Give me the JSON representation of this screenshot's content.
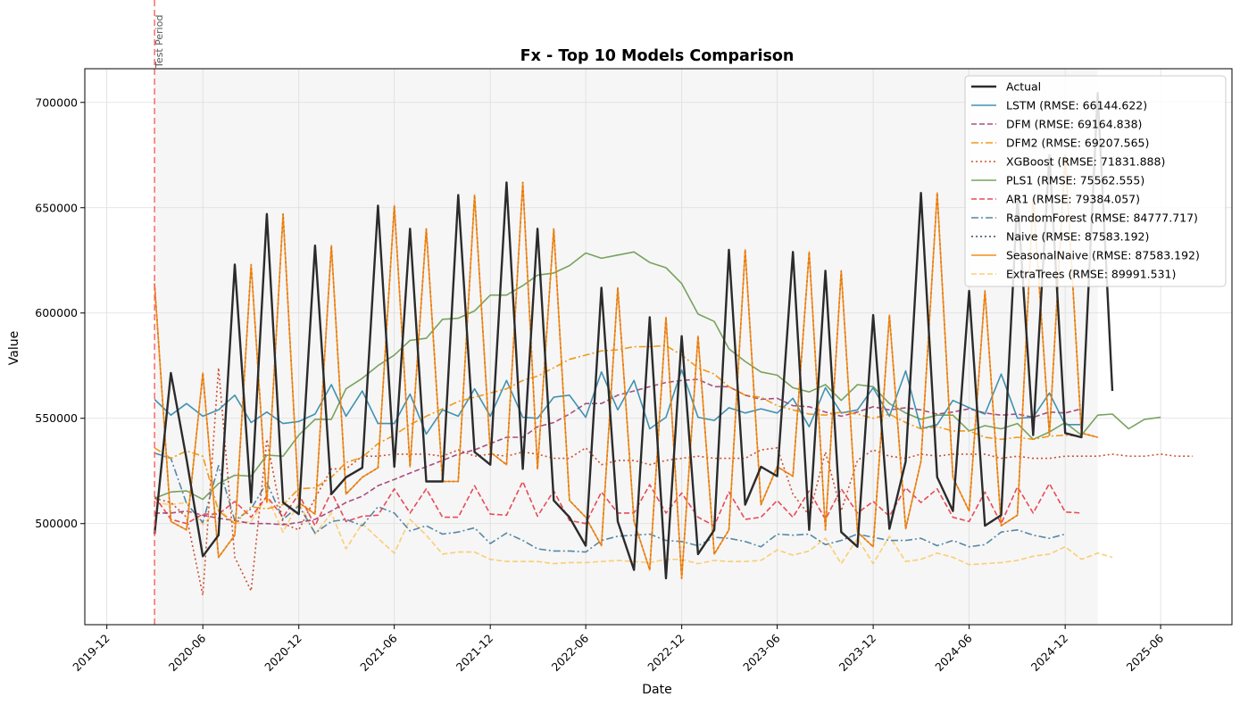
{
  "chart_data": {
    "type": "line",
    "title": "Fx - Top 10 Models Comparison",
    "xlabel": "Date",
    "ylabel": "Value",
    "xlim": [
      "2019-10-20",
      "2025-10-15"
    ],
    "ylim": [
      452000,
      716000
    ],
    "x_ticks": [
      "2019-12",
      "2020-06",
      "2020-12",
      "2021-06",
      "2021-12",
      "2022-06",
      "2022-12",
      "2023-06",
      "2023-12",
      "2024-06",
      "2024-12",
      "2025-06"
    ],
    "y_ticks": [
      500000,
      550000,
      600000,
      650000,
      700000
    ],
    "grid": true,
    "legend_position": "top-right",
    "annotation": {
      "label": "Test Period",
      "x": "2020-03-01",
      "color": "#ff5a5a"
    },
    "test_region": {
      "start": "2020-03-01",
      "end": "2025-02-01"
    },
    "colors": {
      "Actual": "#2b2b2b",
      "LSTM": "#2e86ab",
      "DFM": "#a23b72",
      "DFM2": "#f18f01",
      "XGBoost": "#c73e1d",
      "PLS1": "#6a994e",
      "AR1": "#e63946",
      "RandomForest": "#457b9d",
      "Naive": "#1d3557",
      "SeasonalNaive": "#f77f00",
      "ExtraTrees": "#fcbf49"
    },
    "series": [
      {
        "name": "Actual",
        "legend": "Actual",
        "start": "2020-03-01",
        "values": [
          495000,
          571500,
          530500,
          484500,
          494500,
          623000,
          510000,
          647000,
          510000,
          504500,
          632000,
          514000,
          522000,
          526500,
          651000,
          527000,
          640000,
          520000,
          520000,
          656000,
          534000,
          528000,
          662000,
          526000,
          640000,
          511000,
          503000,
          489500,
          612000,
          501000,
          478000,
          598000,
          474000,
          589000,
          485500,
          497000,
          630000,
          509000,
          527000,
          522500,
          629000,
          497000,
          620000,
          496000,
          489000,
          599000,
          497500,
          529500,
          657000,
          522000,
          506000,
          610500,
          499000,
          504000,
          655000,
          542000,
          675000,
          543000,
          541000,
          704500,
          563000
        ]
      },
      {
        "name": "LSTM",
        "legend": "LSTM (RMSE: 66144.622)",
        "start": "2020-03-01",
        "values": [
          559000,
          551500,
          557000,
          551000,
          554000,
          561000,
          548000,
          553000,
          547500,
          548500,
          552000,
          566000,
          551000,
          563000,
          547500,
          547500,
          561500,
          542500,
          554000,
          551000,
          564000,
          551000,
          568000,
          550500,
          550000,
          560000,
          561000,
          550500,
          572000,
          554000,
          568000,
          545000,
          550500,
          573000,
          550500,
          549000,
          555000,
          552500,
          554500,
          552500,
          559500,
          546000,
          564500,
          552500,
          554000,
          564500,
          551000,
          572500,
          545000,
          547000,
          558500,
          555000,
          552000,
          571000,
          550000,
          550500,
          562000,
          547000,
          547000
        ]
      },
      {
        "name": "DFM",
        "legend": "DFM (RMSE: 69164.838)",
        "start": "2020-03-01",
        "values": [
          505000,
          505000,
          506000,
          504000,
          502500,
          501500,
          500000,
          500000,
          499500,
          500500,
          502000,
          506000,
          510000,
          513000,
          518000,
          521000,
          524000,
          527000,
          530000,
          533000,
          535000,
          538000,
          541000,
          541000,
          546000,
          548000,
          552000,
          557000,
          557000,
          561000,
          563000,
          565000,
          567000,
          568000,
          568500,
          565000,
          565000,
          561000,
          559000,
          559500,
          556000,
          555500,
          553000,
          551000,
          553000,
          555500,
          554000,
          555000,
          554000,
          552000,
          553000,
          554500,
          552500,
          551500,
          552000,
          550500,
          553000,
          552500,
          554500
        ]
      },
      {
        "name": "DFM2",
        "legend": "DFM2 (RMSE: 69207.565)",
        "start": "2020-03-01",
        "values": [
          536000,
          531000,
          534500,
          532000,
          506000,
          500000,
          508000,
          507000,
          509000,
          516500,
          517000,
          522000,
          529000,
          531500,
          538000,
          542000,
          547000,
          551000,
          554500,
          558000,
          560000,
          562000,
          564000,
          568000,
          570000,
          574000,
          578000,
          580000,
          582000,
          582500,
          584000,
          584000,
          584500,
          580000,
          574000,
          571000,
          565000,
          561000,
          560000,
          556000,
          554000,
          552000,
          551500,
          553000,
          552000,
          550000,
          552000,
          548000,
          545000,
          546000,
          544000,
          544000,
          541000,
          540000,
          541000,
          540000,
          541500,
          542000,
          541500
        ]
      },
      {
        "name": "XGBoost",
        "legend": "XGBoost (RMSE: 71831.888)",
        "start": "2020-03-01",
        "values": [
          512000,
          510000,
          503000,
          466000,
          574000,
          484000,
          468000,
          540000,
          500000,
          497000,
          512000,
          526000,
          526000,
          532000,
          532000,
          533000,
          533000,
          533000,
          532000,
          535000,
          532000,
          533000,
          532000,
          534000,
          533000,
          531000,
          531000,
          536000,
          528000,
          530000,
          530000,
          528000,
          530000,
          531000,
          532000,
          531000,
          531000,
          531000,
          535000,
          536000,
          514000,
          504000,
          534000,
          506000,
          530000,
          535000,
          532000,
          531000,
          533000,
          532000,
          533000,
          533000,
          533000,
          531000,
          532000,
          531000,
          531000,
          532000,
          532000,
          532000,
          533000,
          532000,
          532000,
          533000,
          532000,
          532000
        ]
      },
      {
        "name": "PLS1",
        "legend": "PLS1 (RMSE: 75562.555)",
        "start": "2020-03-01",
        "values": [
          512000,
          515000,
          515500,
          511500,
          519000,
          523000,
          522500,
          532500,
          532000,
          542000,
          549500,
          549500,
          564000,
          569000,
          575000,
          580000,
          587000,
          588000,
          597000,
          597500,
          601000,
          608500,
          608500,
          613000,
          618000,
          619000,
          622500,
          628500,
          626000,
          627500,
          629000,
          624000,
          621500,
          614000,
          599500,
          596000,
          583000,
          577000,
          572000,
          570500,
          564500,
          562500,
          566000,
          558500,
          566000,
          565000,
          557000,
          552500,
          549500,
          551500,
          551500,
          544000,
          546500,
          545000,
          547500,
          540000,
          543500,
          548000,
          542000,
          551500,
          552000,
          545000,
          549500,
          550500
        ]
      },
      {
        "name": "AR1",
        "legend": "AR1 (RMSE: 79384.057)",
        "start": "2020-03-01",
        "values": [
          513000,
          502000,
          500000,
          504500,
          504500,
          510500,
          503000,
          513000,
          503000,
          514000,
          499000,
          515000,
          501000,
          503500,
          504000,
          516500,
          505000,
          516500,
          503000,
          503000,
          518000,
          504500,
          504000,
          520000,
          503500,
          515500,
          501500,
          500000,
          515000,
          505000,
          505000,
          518500,
          505000,
          514500,
          503000,
          499000,
          515000,
          502000,
          503000,
          511000,
          503000,
          515500,
          502000,
          516500,
          505000,
          510500,
          503500,
          517000,
          510000,
          516500,
          503000,
          501000,
          515000,
          500000,
          517500,
          505000,
          519000,
          505500,
          505000
        ]
      },
      {
        "name": "RandomForest",
        "legend": "RandomForest (RMSE: 84777.717)",
        "start": "2020-03-01",
        "values": [
          533500,
          531000,
          509500,
          500500,
          527500,
          501500,
          507000,
          519500,
          502000,
          508500,
          495500,
          501000,
          502000,
          499000,
          508000,
          505000,
          496500,
          499000,
          495000,
          496000,
          498000,
          490500,
          495500,
          492000,
          488000,
          487000,
          487000,
          486500,
          492000,
          494000,
          494500,
          495000,
          492000,
          491500,
          489500,
          493500,
          493000,
          491500,
          489000,
          495000,
          494500,
          495000,
          490000,
          492000,
          495000,
          493500,
          492000,
          492000,
          493000,
          489500,
          492000,
          489000,
          490000,
          496000,
          497000,
          494500,
          493000,
          495000
        ]
      },
      {
        "name": "Naive",
        "legend": "Naive (RMSE: 87583.192)",
        "start": "2020-03-01",
        "values": [
          614000,
          501000,
          497000,
          571500,
          484000,
          494500,
          623000,
          510000,
          647000,
          510000,
          504500,
          632000,
          514000,
          522000,
          526500,
          651000,
          527000,
          640000,
          520000,
          520000,
          656000,
          534000,
          528000,
          662000,
          526000,
          640000,
          511000,
          503000,
          489500,
          612000,
          501000,
          478000,
          598000,
          474000,
          589000,
          485500,
          497000,
          630000,
          509000,
          527000,
          522500,
          629000,
          497000,
          620000,
          496000,
          489000,
          599000,
          497500,
          529500,
          657000,
          522000,
          506000,
          610500,
          499000,
          504000,
          655000,
          542000,
          675000,
          543000,
          541000
        ]
      },
      {
        "name": "SeasonalNaive",
        "legend": "SeasonalNaive (RMSE: 87583.192)",
        "start": "2020-03-01",
        "values": [
          614000,
          501000,
          497000,
          571500,
          484000,
          494500,
          623000,
          510000,
          647000,
          510000,
          504500,
          632000,
          514000,
          522000,
          526500,
          651000,
          527000,
          640000,
          520000,
          520000,
          656000,
          534000,
          528000,
          662000,
          526000,
          640000,
          511000,
          503000,
          489500,
          612000,
          501000,
          478000,
          598000,
          474000,
          589000,
          485500,
          497000,
          630000,
          509000,
          527000,
          522500,
          629000,
          497000,
          620000,
          496000,
          489000,
          599000,
          497500,
          529500,
          657000,
          522000,
          506000,
          610500,
          499000,
          504000,
          655000,
          542000,
          675000,
          543000,
          541000
        ]
      },
      {
        "name": "ExtraTrees",
        "legend": "ExtraTrees (RMSE: 89991.531)",
        "start": "2020-03-01",
        "values": [
          510000,
          509000,
          510000,
          499500,
          507000,
          500000,
          501000,
          513000,
          496000,
          510000,
          495000,
          505000,
          488000,
          500000,
          493000,
          486000,
          502000,
          494500,
          485500,
          486500,
          486500,
          483000,
          482000,
          482000,
          482000,
          481000,
          481500,
          481500,
          482000,
          482500,
          482000,
          481500,
          483000,
          483000,
          481000,
          482500,
          482000,
          482000,
          482500,
          487500,
          485000,
          487000,
          493000,
          481000,
          493000,
          481000,
          494000,
          482000,
          483000,
          486000,
          484000,
          480500,
          481000,
          481500,
          482500,
          484500,
          485500,
          489000,
          483000,
          486000,
          484000
        ]
      }
    ]
  }
}
